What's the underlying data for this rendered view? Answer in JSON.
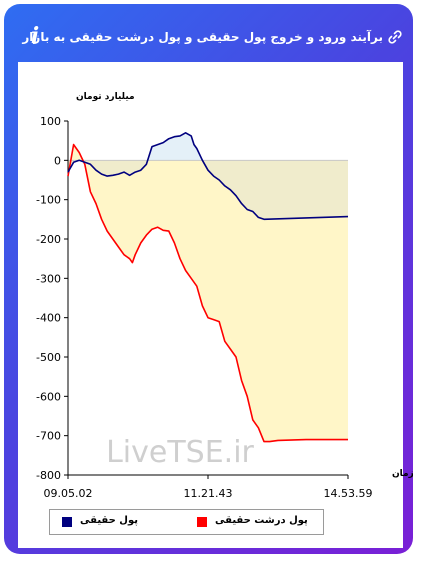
{
  "header": {
    "title": "برآیند ورود و خروج پول حقیقی و پول درشت حقیقی به بازار",
    "info_glyph": "i"
  },
  "icons": {
    "info": "info-icon",
    "link": "link-icon"
  },
  "watermark": "LiveTSE.ir",
  "colors": {
    "series_real_money": "#00007f",
    "series_big_real_money": "#ff0000",
    "fill_area": "#fff6c8",
    "fill_real_above": "#e4f0f8",
    "fill_real_below": "#f0eccc"
  },
  "chart_data": {
    "type": "line",
    "ylabel": "میلیارد تومان",
    "xlabel": "زمان",
    "ylim": [
      -800,
      100
    ],
    "yticks": [
      100,
      0,
      -100,
      -200,
      -300,
      -400,
      -500,
      -600,
      -700,
      -800
    ],
    "x_tick_labels": [
      "09.05.02",
      "11.21.43",
      "14.53.59"
    ],
    "grid": false,
    "legend_position": "bottom",
    "series": [
      {
        "name": "پول حقیقی",
        "color": "#00007f",
        "x": [
          0,
          0.02,
          0.04,
          0.06,
          0.08,
          0.1,
          0.12,
          0.14,
          0.16,
          0.18,
          0.2,
          0.22,
          0.24,
          0.26,
          0.28,
          0.3,
          0.32,
          0.34,
          0.36,
          0.38,
          0.4,
          0.42,
          0.44,
          0.45,
          0.46,
          0.48,
          0.5,
          0.52,
          0.54,
          0.56,
          0.58,
          0.6,
          0.62,
          0.64,
          0.66,
          0.68,
          0.7,
          0.7,
          1.0
        ],
        "y": [
          -30,
          -5,
          0,
          -5,
          -10,
          -25,
          -35,
          -40,
          -38,
          -35,
          -30,
          -38,
          -30,
          -25,
          -10,
          35,
          40,
          45,
          55,
          60,
          62,
          70,
          62,
          40,
          30,
          0,
          -25,
          -40,
          -50,
          -65,
          -75,
          -90,
          -110,
          -125,
          -130,
          -145,
          -150,
          -150,
          -143
        ]
      },
      {
        "name": "پول درشت حقیقی",
        "color": "#ff0000",
        "x": [
          0,
          0.02,
          0.04,
          0.06,
          0.08,
          0.1,
          0.12,
          0.14,
          0.16,
          0.18,
          0.2,
          0.22,
          0.23,
          0.24,
          0.26,
          0.28,
          0.3,
          0.32,
          0.34,
          0.36,
          0.38,
          0.4,
          0.42,
          0.44,
          0.46,
          0.48,
          0.5,
          0.52,
          0.54,
          0.56,
          0.58,
          0.6,
          0.62,
          0.64,
          0.66,
          0.68,
          0.7,
          0.72,
          0.75,
          0.85,
          1.0
        ],
        "y": [
          -40,
          40,
          20,
          -10,
          -80,
          -110,
          -150,
          -180,
          -200,
          -220,
          -240,
          -250,
          -260,
          -240,
          -210,
          -190,
          -175,
          -170,
          -178,
          -180,
          -210,
          -250,
          -280,
          -300,
          -320,
          -370,
          -400,
          -405,
          -410,
          -460,
          -480,
          -500,
          -560,
          -600,
          -660,
          -680,
          -715,
          -715,
          -712,
          -710,
          -710
        ]
      }
    ]
  },
  "legend": {
    "items": [
      {
        "label": "پول حقیقی",
        "color": "#00007f"
      },
      {
        "label": "پول درشت حقیقی",
        "color": "#ff0000"
      }
    ]
  }
}
